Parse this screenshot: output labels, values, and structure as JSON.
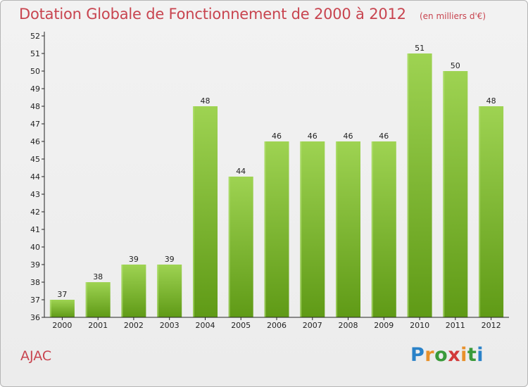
{
  "header": {
    "title": "Dotation Globale de Fonctionnement de 2000 à 2012",
    "subtitle": "(en milliers d'€)"
  },
  "footer": {
    "commune": "AJAC",
    "logo_text": "Proxiti"
  },
  "colors": {
    "title": "#c8444f",
    "bar_top": "#9ed352",
    "bar_bottom": "#5f9a16",
    "axis": "#222222"
  },
  "chart_data": {
    "type": "bar",
    "categories": [
      "2000",
      "2001",
      "2002",
      "2003",
      "2004",
      "2005",
      "2006",
      "2007",
      "2008",
      "2009",
      "2010",
      "2011",
      "2012"
    ],
    "values": [
      37,
      38,
      39,
      39,
      48,
      44,
      46,
      46,
      46,
      46,
      51,
      50,
      48
    ],
    "title": "Dotation Globale de Fonctionnement de 2000 à 2012",
    "subtitle": "(en milliers d'€)",
    "ylim": [
      36,
      52
    ],
    "yticks": [
      36,
      37,
      38,
      39,
      40,
      41,
      42,
      43,
      44,
      45,
      46,
      47,
      48,
      49,
      50,
      51,
      52
    ],
    "grid": false,
    "data_labels": true
  }
}
